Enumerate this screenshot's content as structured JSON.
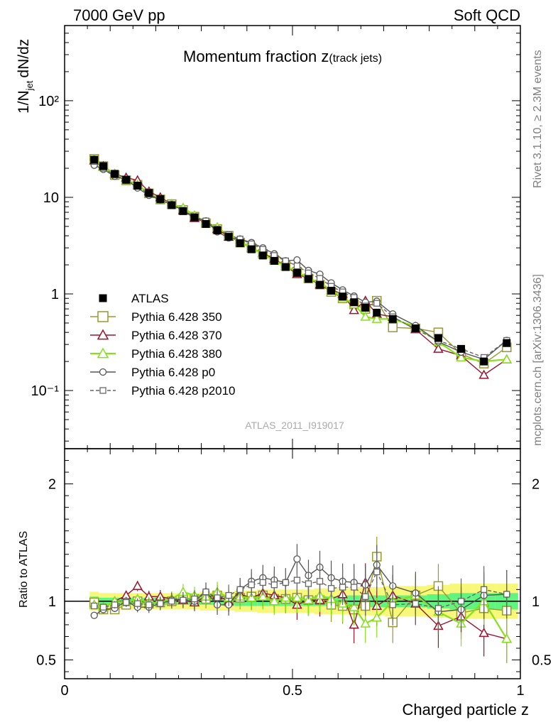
{
  "header": {
    "left": "7000 GeV pp",
    "right": "Soft QCD"
  },
  "side_texts": {
    "rivet": "Rivet 3.1.10, ≥ 2.3M events",
    "mcplots": "mcplots.cern.ch [arXiv:1306.3436]"
  },
  "colors": {
    "atlas": "#000000",
    "p350": "#999a2c",
    "p370": "#9a1430",
    "p380": "#86e01c",
    "p0": "#555555",
    "p2010": "#666666",
    "band_inner": "#5ff57f",
    "band_outer": "#f7f77a"
  },
  "chart_data": [
    {
      "type": "line",
      "title": "Momentum fraction z(track jets)",
      "title_main": "Momentum fraction z",
      "title_sub": "(track jets)",
      "ylabel": "1/N_jet dN/dz",
      "ylabel_main": "1/N",
      "ylabel_sub": "jet",
      "ylabel_tail": "dN/dz",
      "xlabel": "",
      "yscale": "log",
      "xlim": [
        0,
        1
      ],
      "ylim": [
        0.025,
        600
      ],
      "grid": false,
      "legend_position": "bottom-left",
      "watermark": "ATLAS_2011_I919017",
      "ytick_labels": [
        "10⁻¹",
        "1",
        "10",
        "10²"
      ],
      "ytick_values": [
        0.1,
        1,
        10,
        100
      ],
      "x": [
        0.065,
        0.085,
        0.11,
        0.135,
        0.16,
        0.185,
        0.21,
        0.235,
        0.26,
        0.285,
        0.31,
        0.335,
        0.36,
        0.385,
        0.41,
        0.435,
        0.46,
        0.485,
        0.51,
        0.535,
        0.56,
        0.585,
        0.61,
        0.635,
        0.66,
        0.685,
        0.72,
        0.77,
        0.82,
        0.87,
        0.92,
        0.97
      ],
      "series": [
        {
          "name": "ATLAS",
          "marker": "filled-square",
          "line": "none",
          "values": [
            24.5,
            21,
            17.5,
            15.2,
            13.2,
            11.1,
            9.6,
            8.3,
            7.2,
            6.2,
            5.3,
            4.55,
            3.9,
            3.35,
            2.9,
            2.5,
            2.2,
            1.9,
            1.65,
            1.43,
            1.24,
            1.08,
            0.94,
            0.82,
            0.72,
            0.64,
            0.55,
            0.44,
            0.35,
            0.27,
            0.2,
            0.31
          ]
        },
        {
          "name": "Pythia 6.428 350",
          "marker": "open-square",
          "line": "solid",
          "values": [
            25,
            21,
            17,
            15,
            13.5,
            11,
            9.5,
            8.5,
            7.4,
            6.3,
            5.4,
            4.7,
            4.0,
            3.4,
            3.0,
            2.6,
            2.25,
            1.95,
            1.7,
            1.45,
            1.25,
            1.05,
            0.9,
            0.78,
            0.7,
            0.85,
            0.45,
            0.44,
            0.4,
            0.24,
            0.19,
            0.28
          ]
        },
        {
          "name": "Pythia 6.428 370",
          "marker": "open-triangle",
          "line": "solid",
          "values": [
            24,
            21,
            17.5,
            16,
            15,
            11.5,
            10,
            8.5,
            7.3,
            6.1,
            5.5,
            4.7,
            3.9,
            3.5,
            3.0,
            2.65,
            2.3,
            1.95,
            1.6,
            1.45,
            1.25,
            1.1,
            1.0,
            0.68,
            0.85,
            0.62,
            0.58,
            0.43,
            0.27,
            0.23,
            0.145,
            0.21
          ]
        },
        {
          "name": "Pythia 6.428 380",
          "marker": "open-triangle",
          "line": "solid",
          "values": [
            25,
            20.5,
            17.5,
            15,
            13.5,
            11,
            9.5,
            8.5,
            7.8,
            6.5,
            5.5,
            4.9,
            4.0,
            3.5,
            3.0,
            2.6,
            2.2,
            1.95,
            1.7,
            1.45,
            1.3,
            1.1,
            0.92,
            0.78,
            0.58,
            0.55,
            0.55,
            0.46,
            0.32,
            0.22,
            0.2,
            0.21
          ]
        },
        {
          "name": "Pythia 6.428 p0",
          "marker": "open-circle",
          "line": "solid",
          "values": [
            21.5,
            19.5,
            16.5,
            15.2,
            12.5,
            10.5,
            9.4,
            8.4,
            7.3,
            6.2,
            5.7,
            4.4,
            3.8,
            3.7,
            3.4,
            3.0,
            2.6,
            2.2,
            2.25,
            1.75,
            1.6,
            1.3,
            1.1,
            0.95,
            0.82,
            0.84,
            0.62,
            0.47,
            0.32,
            0.25,
            0.21,
            0.33
          ]
        },
        {
          "name": "Pythia 6.428 p2010",
          "marker": "open-square-small",
          "line": "dashed",
          "values": [
            23.5,
            20,
            17,
            15,
            13,
            10.8,
            9.4,
            8.3,
            7.3,
            6.3,
            5.7,
            4.7,
            4.1,
            3.7,
            3.3,
            2.9,
            2.5,
            2.2,
            1.95,
            1.65,
            1.45,
            1.2,
            1.05,
            0.92,
            0.75,
            0.8,
            0.58,
            0.43,
            0.33,
            0.27,
            0.22,
            0.33
          ]
        }
      ]
    },
    {
      "type": "line",
      "title": "",
      "ylabel": "Ratio to ATLAS",
      "xlabel": "Charged particle z",
      "xlim": [
        0,
        1
      ],
      "ylim": [
        0.34,
        2.3
      ],
      "grid": false,
      "xtick_labels": [
        "0",
        "0.5",
        "1"
      ],
      "xtick_values": [
        0,
        0.5,
        1
      ],
      "ytick_labels": [
        "0.5",
        "1",
        "2"
      ],
      "ytick_values": [
        0.5,
        1,
        2
      ],
      "reference_line": 1,
      "x": [
        0.065,
        0.085,
        0.11,
        0.135,
        0.16,
        0.185,
        0.21,
        0.235,
        0.26,
        0.285,
        0.31,
        0.335,
        0.36,
        0.385,
        0.41,
        0.435,
        0.46,
        0.485,
        0.51,
        0.535,
        0.56,
        0.585,
        0.61,
        0.635,
        0.66,
        0.685,
        0.72,
        0.77,
        0.82,
        0.87,
        0.92,
        0.97
      ],
      "band_inner_halfwidth": [
        0.04,
        0.03,
        0.03,
        0.03,
        0.03,
        0.03,
        0.03,
        0.03,
        0.03,
        0.03,
        0.03,
        0.03,
        0.03,
        0.04,
        0.04,
        0.04,
        0.04,
        0.04,
        0.04,
        0.04,
        0.04,
        0.04,
        0.05,
        0.05,
        0.05,
        0.05,
        0.05,
        0.05,
        0.06,
        0.07,
        0.07,
        0.07
      ],
      "band_outer_halfwidth": [
        0.08,
        0.07,
        0.07,
        0.07,
        0.07,
        0.07,
        0.07,
        0.07,
        0.07,
        0.07,
        0.08,
        0.08,
        0.08,
        0.09,
        0.09,
        0.1,
        0.1,
        0.1,
        0.1,
        0.1,
        0.11,
        0.11,
        0.11,
        0.12,
        0.12,
        0.12,
        0.13,
        0.13,
        0.14,
        0.15,
        0.15,
        0.15
      ],
      "series": [
        {
          "name": "Pythia 6.428 350",
          "values": [
            0.99,
            0.93,
            0.93,
            0.97,
            1.0,
            0.98,
            0.99,
            1.0,
            1.02,
            1.02,
            1.02,
            1.05,
            1.0,
            1.03,
            1.04,
            1.05,
            1.02,
            1.02,
            1.03,
            1.01,
            1.01,
            0.97,
            0.96,
            0.93,
            0.96,
            1.38,
            0.82,
            1.05,
            1.13,
            0.9,
            0.94,
            0.92
          ]
        },
        {
          "name": "Pythia 6.428 370",
          "values": [
            0.97,
            0.95,
            1.0,
            1.05,
            1.13,
            1.04,
            1.04,
            1.02,
            1.01,
            0.99,
            1.04,
            1.05,
            1.0,
            1.06,
            1.03,
            1.07,
            1.05,
            1.03,
            0.97,
            1.01,
            1.01,
            1.02,
            1.06,
            0.8,
            1.16,
            0.96,
            1.05,
            0.98,
            0.79,
            0.87,
            0.73,
            0.68
          ]
        },
        {
          "name": "Pythia 6.428 380",
          "values": [
            0.97,
            0.95,
            1.0,
            0.99,
            1.02,
            0.99,
            0.99,
            1.02,
            1.08,
            1.05,
            1.04,
            1.08,
            1.03,
            1.04,
            1.03,
            1.04,
            1.0,
            1.03,
            1.03,
            1.01,
            1.05,
            1.02,
            0.98,
            0.95,
            0.81,
            0.86,
            1.0,
            1.05,
            0.91,
            0.81,
            1.0,
            0.68
          ]
        },
        {
          "name": "Pythia 6.428 p0",
          "values": [
            0.88,
            0.93,
            0.94,
            1.0,
            0.95,
            0.95,
            0.98,
            1.01,
            1.01,
            1.0,
            1.08,
            0.97,
            0.97,
            1.1,
            1.17,
            1.2,
            1.18,
            1.16,
            1.36,
            1.22,
            1.29,
            1.2,
            1.17,
            1.16,
            1.14,
            1.31,
            1.13,
            1.07,
            0.91,
            0.93,
            1.05,
            1.06
          ]
        },
        {
          "name": "Pythia 6.428 p2010",
          "values": [
            0.96,
            0.95,
            0.97,
            0.99,
            0.98,
            0.97,
            0.98,
            1.0,
            1.01,
            1.02,
            1.08,
            1.03,
            1.05,
            1.1,
            1.14,
            1.16,
            1.14,
            1.16,
            1.18,
            1.15,
            1.17,
            1.11,
            1.12,
            1.12,
            1.04,
            1.25,
            0.97,
            0.98,
            0.94,
            1.0,
            1.1,
            1.06
          ]
        }
      ]
    }
  ]
}
